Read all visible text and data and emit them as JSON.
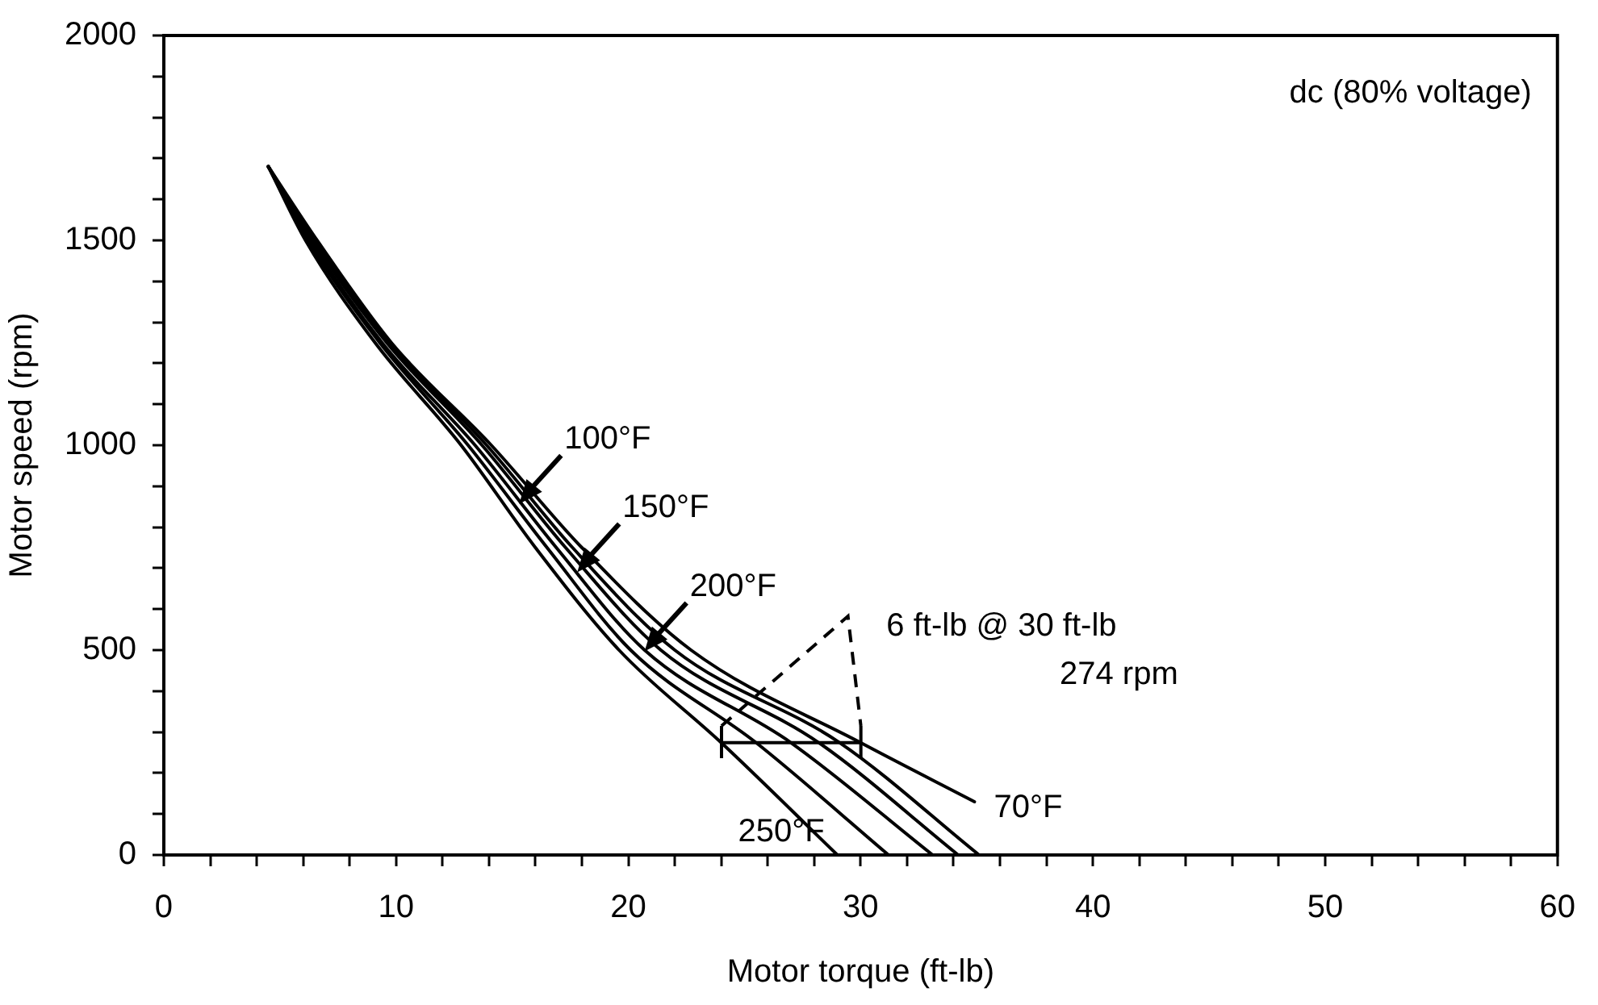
{
  "chart_data": {
    "type": "line",
    "title": "dc (80% voltage)",
    "xlabel": "Motor torque (ft-lb)",
    "ylabel": "Motor speed (rpm)",
    "xlim": [
      0,
      60
    ],
    "xticks": [
      0,
      {
        "value": 2,
        "label": null
      },
      {
        "value": 4,
        "label": null
      },
      {
        "value": 6,
        "label": null
      },
      {
        "value": 8,
        "label": null
      },
      10,
      {
        "value": 12,
        "label": null
      },
      {
        "value": 14,
        "label": null
      },
      {
        "value": 16,
        "label": null
      },
      {
        "value": 18,
        "label": null
      },
      20,
      {
        "value": 22,
        "label": null
      },
      {
        "value": 24,
        "label": null
      },
      {
        "value": 26,
        "label": null
      },
      {
        "value": 28,
        "label": null
      },
      30,
      {
        "value": 32,
        "label": null
      },
      {
        "value": 34,
        "label": null
      },
      {
        "value": 36,
        "label": null
      },
      {
        "value": 38,
        "label": null
      },
      40,
      {
        "value": 42,
        "label": null
      },
      {
        "value": 44,
        "label": null
      },
      {
        "value": 46,
        "label": null
      },
      {
        "value": 48,
        "label": null
      },
      50,
      {
        "value": 52,
        "label": null
      },
      {
        "value": 54,
        "label": null
      },
      {
        "value": 56,
        "label": null
      },
      {
        "value": 58,
        "label": null
      },
      60
    ],
    "ylim": [
      0,
      2000
    ],
    "yticks": [
      0,
      {
        "value": 100,
        "label": null
      },
      {
        "value": 200,
        "label": null
      },
      {
        "value": 300,
        "label": null
      },
      {
        "value": 400,
        "label": null
      },
      500,
      {
        "value": 600,
        "label": null
      },
      {
        "value": 700,
        "label": null
      },
      {
        "value": 800,
        "label": null
      },
      {
        "value": 900,
        "label": null
      },
      1000,
      {
        "value": 1100,
        "label": null
      },
      {
        "value": 1200,
        "label": null
      },
      {
        "value": 1300,
        "label": null
      },
      {
        "value": 1400,
        "label": null
      },
      1500,
      {
        "value": 1600,
        "label": null
      },
      {
        "value": 1700,
        "label": null
      },
      {
        "value": 1800,
        "label": null
      },
      {
        "value": 1900,
        "label": null
      },
      2000
    ],
    "grid": false,
    "legend": false,
    "marker": "none",
    "line_style": "solid",
    "series": [
      {
        "color": "#000000",
        "x": [
          4.5,
          6.1,
          9.1,
          12.8,
          16.0,
          19.6,
          24.0,
          29.0
        ],
        "values": [
          1680,
          1500,
          1250,
          1000,
          750,
          500,
          274,
          0
        ]
      },
      {
        "color": "#000000",
        "x": [
          4.5,
          6.2,
          9.3,
          13.1,
          16.5,
          20.1,
          25.5,
          31.2
        ],
        "values": [
          1680,
          1500,
          1250,
          1000,
          750,
          500,
          274,
          0
        ]
      },
      {
        "color": "#000000",
        "x": [
          4.5,
          6.3,
          9.4,
          13.4,
          16.9,
          20.7,
          27.0,
          33.1
        ],
        "values": [
          1680,
          1500,
          1250,
          1000,
          750,
          500,
          274,
          0
        ]
      },
      {
        "color": "#000000",
        "x": [
          4.5,
          6.4,
          9.6,
          13.7,
          17.3,
          21.4,
          28.2,
          34.2
        ],
        "values": [
          1680,
          1500,
          1250,
          1000,
          750,
          500,
          274,
          0
        ]
      },
      {
        "color": "#000000",
        "x": [
          4.5,
          6.5,
          9.7,
          13.9,
          17.6,
          22.0,
          29.1,
          35.1
        ],
        "values": [
          1680,
          1500,
          1250,
          1000,
          750,
          500,
          274,
          0
        ]
      },
      {
        "color": "#000000",
        "x": [
          4.5,
          6.6,
          9.8,
          14.1,
          18.0,
          22.7,
          30.0,
          34.9
        ],
        "values": [
          1680,
          1500,
          1250,
          1000,
          750,
          500,
          274,
          130
        ]
      },
      {
        "color": "#000000",
        "x": [
          24,
          30
        ],
        "values": [
          274,
          274
        ]
      }
    ],
    "annotations": [
      {
        "text": "100°F",
        "x": 15.3,
        "y": 857
      },
      {
        "text": "150°F",
        "x": 17.8,
        "y": 690
      },
      {
        "text": "200°F",
        "x": 20.7,
        "y": 497
      },
      {
        "text": "250°F",
        "x": 29.0,
        "y": 0
      },
      {
        "text": "70°F",
        "x": 34.9,
        "y": 130
      },
      {
        "text": "6 ft-lb @ 30 ft-lb\n274 rpm",
        "x": 30,
        "y": 274
      }
    ]
  }
}
